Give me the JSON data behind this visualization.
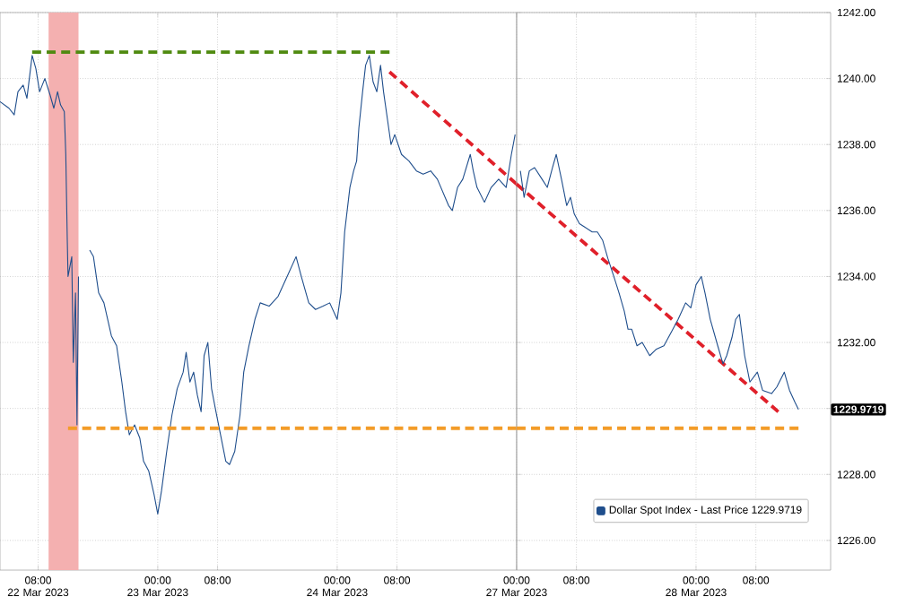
{
  "chart_data": [
    {
      "type": "line",
      "xlim": [
        "2023-03-22T02:54",
        "2023-03-25T00:00"
      ],
      "ylim": [
        1225.1,
        1242
      ],
      "xticks": [
        {
          "value": "2023-03-22T08:00",
          "label": "08:00 22 Mar 2023"
        },
        {
          "value": "2023-03-23T00:00",
          "label": "00:00 23 Mar 2023"
        },
        {
          "value": "2023-03-23T08:00",
          "label": "08:00"
        },
        {
          "value": "2023-03-24T00:00",
          "label": "00:00 24 Mar 2023"
        },
        {
          "value": "2023-03-24T08:00",
          "label": "08:00"
        }
      ],
      "yticks": [
        1226,
        1228,
        1230,
        1232,
        1234,
        1236,
        1238,
        1240,
        1242
      ],
      "tick_labels": "x",
      "grid": true,
      "line_style": "solid",
      "bands": [
        {
          "axis": "x",
          "from": "2023-03-22T09:24",
          "to": "2023-03-22T13:24",
          "color": "#f4b0b0"
        }
      ],
      "series": [
        {
          "color": "#1f4e8c",
          "x": [
            "2023-03-22T02:54",
            "2023-03-22T04:06",
            "2023-03-22T04:48",
            "2023-03-22T05:18",
            "2023-03-22T06:00",
            "2023-03-22T06:30",
            "2023-03-22T07:12",
            "2023-03-22T07:42",
            "2023-03-22T08:12",
            "2023-03-22T08:54",
            "2023-03-22T09:36",
            "2023-03-22T10:06",
            "2023-03-22T10:36",
            "2023-03-22T11:00",
            "2023-03-22T11:30",
            "2023-03-22T11:42",
            "2023-03-22T11:54",
            "2023-03-22T12:00",
            "2023-03-22T12:30",
            "2023-03-22T12:42",
            "2023-03-22T13:00",
            "2023-03-22T13:12",
            "2023-03-22T13:24",
            "2023-03-22T14:12",
            "2023-03-22T14:54",
            "2023-03-22T15:24",
            "2023-03-22T16:06",
            "2023-03-22T16:48",
            "2023-03-22T17:48",
            "2023-03-22T18:30",
            "2023-03-22T19:12",
            "2023-03-22T19:42",
            "2023-03-22T20:12",
            "2023-03-22T20:54",
            "2023-03-22T21:36",
            "2023-03-22T22:06",
            "2023-03-22T22:48",
            "2023-03-22T23:30",
            "2023-03-23T00:00",
            "2023-03-23T00:30",
            "2023-03-23T01:12",
            "2023-03-23T01:54",
            "2023-03-23T02:36",
            "2023-03-23T03:24",
            "2023-03-23T03:48",
            "2023-03-23T04:18",
            "2023-03-23T04:48",
            "2023-03-23T05:18",
            "2023-03-23T05:48",
            "2023-03-23T06:12",
            "2023-03-23T06:42",
            "2023-03-23T07:12",
            "2023-03-23T07:42",
            "2023-03-23T08:24",
            "2023-03-23T09:06",
            "2023-03-23T09:36",
            "2023-03-23T10:18",
            "2023-03-23T11:00",
            "2023-03-23T11:30",
            "2023-03-23T12:12",
            "2023-03-23T13:00",
            "2023-03-23T13:42",
            "2023-03-23T14:54",
            "2023-03-23T16:06",
            "2023-03-23T17:18",
            "2023-03-23T18:30",
            "2023-03-23T19:12",
            "2023-03-23T20:12",
            "2023-03-23T21:06",
            "2023-03-23T22:06",
            "2023-03-23T23:00",
            "2023-03-24T00:00",
            "2023-03-24T00:30",
            "2023-03-24T01:00",
            "2023-03-24T01:42",
            "2023-03-24T02:12",
            "2023-03-24T02:36",
            "2023-03-24T02:54",
            "2023-03-24T03:24",
            "2023-03-24T03:48",
            "2023-03-24T04:18",
            "2023-03-24T04:48",
            "2023-03-24T05:18",
            "2023-03-24T05:48",
            "2023-03-24T06:12",
            "2023-03-24T06:42",
            "2023-03-24T07:12",
            "2023-03-24T07:42",
            "2023-03-24T08:36",
            "2023-03-24T09:36",
            "2023-03-24T10:36",
            "2023-03-24T11:30",
            "2023-03-24T12:30",
            "2023-03-24T13:24",
            "2023-03-24T14:54",
            "2023-03-24T15:24",
            "2023-03-24T16:06",
            "2023-03-24T16:48",
            "2023-03-24T17:48",
            "2023-03-24T18:12",
            "2023-03-24T18:42",
            "2023-03-24T19:42",
            "2023-03-24T20:36",
            "2023-03-24T21:36",
            "2023-03-24T22:36",
            "2023-03-24T23:18",
            "2023-03-24T23:48"
          ],
          "values": [
            1239.3,
            1239.1,
            1238.9,
            1239.6,
            1239.8,
            1239.4,
            1240.7,
            1240.3,
            1239.6,
            1240.0,
            1239.5,
            1239.1,
            1239.6,
            1239.2,
            1239.0,
            1237.7,
            1235.1,
            1234.0,
            1234.6,
            1231.4,
            1233.5,
            1229.5,
            1234.0,
            null,
            1234.8,
            1234.6,
            1233.5,
            1233.2,
            1232.2,
            1231.9,
            1230.8,
            1229.9,
            1229.2,
            1229.5,
            1229.1,
            1228.4,
            1228.1,
            1227.4,
            1226.8,
            1227.5,
            1228.7,
            1229.8,
            1230.6,
            1231.1,
            1231.7,
            1230.8,
            1231.1,
            1230.4,
            1229.9,
            1231.6,
            1232.0,
            1230.6,
            1230.0,
            1229.2,
            1228.4,
            1228.3,
            1228.7,
            1229.8,
            1231.1,
            1231.9,
            1232.7,
            1233.2,
            1233.1,
            1233.4,
            1234.0,
            1234.6,
            1234.0,
            1233.2,
            1233.0,
            1233.1,
            1233.2,
            1232.7,
            1233.5,
            1235.35,
            1236.7,
            1237.2,
            1237.5,
            1238.5,
            1239.6,
            1240.4,
            1240.7,
            1239.9,
            1239.6,
            1240.4,
            1239.6,
            1238.8,
            1238.0,
            1238.3,
            1237.7,
            1237.5,
            1237.2,
            1237.1,
            1237.2,
            1236.95,
            1236.15,
            1236.0,
            1236.7,
            1236.95,
            1237.7,
            1237.2,
            1236.7,
            1236.25,
            1236.7,
            1236.95,
            1236.7,
            1237.7,
            1238.3
          ]
        },
        {
          "color": "#4f8a10",
          "line_style": "dashed",
          "x": [
            "2023-03-22T07:12",
            "2023-03-24T07:00"
          ],
          "values": [
            1240.8,
            1240.8
          ]
        },
        {
          "color": "#f39c28",
          "line_style": "dashed",
          "x": [
            "2023-03-22T12:00",
            "2023-03-25T00:00"
          ],
          "values": [
            1229.4,
            1229.4
          ]
        },
        {
          "color": "#e0202a",
          "line_style": "dashed",
          "x": [
            "2023-03-24T07:00",
            "2023-03-25T00:00"
          ],
          "values": [
            1240.2,
            1236.8
          ]
        }
      ]
    },
    {
      "type": "line",
      "xlim": [
        "2023-03-27T00:00",
        "2023-03-28T18:00"
      ],
      "ylim": [
        1225.1,
        1242
      ],
      "xticks": [
        {
          "value": "2023-03-27T00:00",
          "label": "00:00 27 Mar 2023"
        },
        {
          "value": "2023-03-27T08:00",
          "label": "08:00"
        },
        {
          "value": "2023-03-28T00:00",
          "label": "00:00 28 Mar 2023"
        },
        {
          "value": "2023-03-28T08:00",
          "label": "08:00"
        }
      ],
      "yticks": [
        {
          "value": 1226,
          "label": "1226.00"
        },
        {
          "value": 1228,
          "label": "1228.00"
        },
        {
          "value": 1230,
          "label": null
        },
        {
          "value": 1232,
          "label": "1232.00"
        },
        {
          "value": 1234,
          "label": "1234.00"
        },
        {
          "value": 1236,
          "label": "1236.00"
        },
        {
          "value": 1238,
          "label": "1238.00"
        },
        {
          "value": 1240,
          "label": "1240.00"
        },
        {
          "value": 1242,
          "label": "1242.00"
        }
      ],
      "grid": true,
      "legend": "bottom right",
      "line_style": "solid",
      "annotations": [
        "1229.9719"
      ],
      "series": [
        {
          "name": "Dollar Spot Index - Last Price 1229.9719",
          "color": "#1f4e8c",
          "x": [
            "2023-03-27T00:30",
            "2023-03-27T01:00",
            "2023-03-27T01:42",
            "2023-03-27T02:24",
            "2023-03-27T03:24",
            "2023-03-27T04:06",
            "2023-03-27T04:48",
            "2023-03-27T05:18",
            "2023-03-27T06:00",
            "2023-03-27T06:42",
            "2023-03-27T07:12",
            "2023-03-27T07:42",
            "2023-03-27T08:24",
            "2023-03-27T09:06",
            "2023-03-27T10:06",
            "2023-03-27T10:48",
            "2023-03-27T11:30",
            "2023-03-27T12:12",
            "2023-03-27T13:00",
            "2023-03-27T13:42",
            "2023-03-27T14:24",
            "2023-03-27T14:54",
            "2023-03-27T15:24",
            "2023-03-27T16:06",
            "2023-03-27T16:48",
            "2023-03-27T17:48",
            "2023-03-27T18:42",
            "2023-03-27T19:42",
            "2023-03-27T20:54",
            "2023-03-27T21:36",
            "2023-03-27T22:36",
            "2023-03-27T23:18",
            "2023-03-28T00:00",
            "2023-03-28T00:42",
            "2023-03-28T01:12",
            "2023-03-28T01:54",
            "2023-03-28T02:54",
            "2023-03-28T03:36",
            "2023-03-28T04:06",
            "2023-03-28T04:48",
            "2023-03-28T05:18",
            "2023-03-28T05:48",
            "2023-03-28T06:30",
            "2023-03-28T07:12",
            "2023-03-28T08:12",
            "2023-03-28T08:54",
            "2023-03-28T10:06",
            "2023-03-28T10:48",
            "2023-03-28T11:48",
            "2023-03-28T12:30",
            "2023-03-28T13:12",
            "2023-03-28T13:42"
          ],
          "values": [
            1237.2,
            1236.4,
            1237.2,
            1237.3,
            1236.95,
            1236.7,
            1237.3,
            1237.7,
            1236.95,
            1236.15,
            1236.4,
            1235.9,
            1235.6,
            1235.5,
            1235.35,
            1235.35,
            1235.1,
            1234.55,
            1234.0,
            1233.5,
            1232.95,
            1232.4,
            1232.4,
            1231.9,
            1232.0,
            1231.6,
            1231.8,
            1231.9,
            1232.4,
            1232.7,
            1233.2,
            1233.05,
            1233.75,
            1234.0,
            1233.5,
            1232.7,
            1231.9,
            1231.35,
            1231.6,
            1232.15,
            1232.7,
            1232.85,
            1231.6,
            1230.8,
            1231.1,
            1230.55,
            1230.45,
            1230.65,
            1231.1,
            1230.55,
            1230.2,
            1229.97
          ]
        },
        {
          "color": "#f39c28",
          "line_style": "dashed",
          "x": [
            "2023-03-27T00:00",
            "2023-03-28T13:42"
          ],
          "values": [
            1229.4,
            1229.4
          ]
        },
        {
          "color": "#e0202a",
          "line_style": "dashed",
          "x": [
            "2023-03-27T00:00",
            "2023-03-28T11:00"
          ],
          "values": [
            1236.8,
            1229.9
          ]
        }
      ]
    }
  ]
}
